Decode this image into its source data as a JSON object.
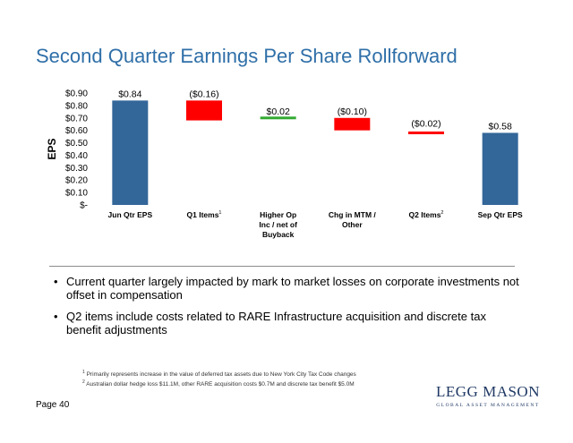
{
  "title": "Second Quarter Earnings Per Share Rollforward",
  "chart_data": {
    "type": "bar",
    "subtype": "waterfall",
    "ylabel": "EPS",
    "ylim": [
      0,
      0.9
    ],
    "y_ticks": [
      "$-",
      "$0.10",
      "$0.20",
      "$0.30",
      "$0.40",
      "$0.50",
      "$0.60",
      "$0.70",
      "$0.80",
      "$0.90"
    ],
    "grid": false,
    "colors": {
      "total": "#336699",
      "decrease": "#ff0000",
      "increase": "#33aa33"
    },
    "categories": [
      {
        "lines": [
          "Jun Qtr EPS"
        ],
        "sup": ""
      },
      {
        "lines": [
          "Q1 Items"
        ],
        "sup": "1"
      },
      {
        "lines": [
          "Higher Op",
          "Inc / net of",
          "Buyback"
        ],
        "sup": ""
      },
      {
        "lines": [
          "Chg in MTM /",
          "Other"
        ],
        "sup": ""
      },
      {
        "lines": [
          "Q2 Items"
        ],
        "sup": "2"
      },
      {
        "lines": [
          "Sep Qtr EPS"
        ],
        "sup": ""
      }
    ],
    "bars": [
      {
        "kind": "total",
        "start": 0,
        "end": 0.84,
        "label": "$0.84"
      },
      {
        "kind": "decrease",
        "start": 0.84,
        "end": 0.68,
        "label": "($0.16)"
      },
      {
        "kind": "increase",
        "start": 0.68,
        "end": 0.7,
        "label": "$0.02"
      },
      {
        "kind": "decrease",
        "start": 0.7,
        "end": 0.6,
        "label": "($0.10)"
      },
      {
        "kind": "decrease",
        "start": 0.6,
        "end": 0.58,
        "label": "($0.02)"
      },
      {
        "kind": "total",
        "start": 0,
        "end": 0.58,
        "label": "$0.58"
      }
    ]
  },
  "bullets": [
    "Current quarter largely impacted by mark to market losses on corporate investments not offset in compensation",
    "Q2 items include costs related to RARE Infrastructure acquisition and discrete tax benefit adjustments"
  ],
  "footnotes": [
    {
      "num": "1",
      "text": "Primarily represents increase in the value of deferred tax assets due to New York City Tax Code changes"
    },
    {
      "num": "2",
      "text": "Australian dollar hedge loss $11.1M, other RARE acquisition costs $0.7M and discrete tax benefit $5.0M"
    }
  ],
  "page_label": "Page 40",
  "logo": {
    "name": "LEGG MASON",
    "tagline": "GLOBAL ASSET MANAGEMENT"
  }
}
